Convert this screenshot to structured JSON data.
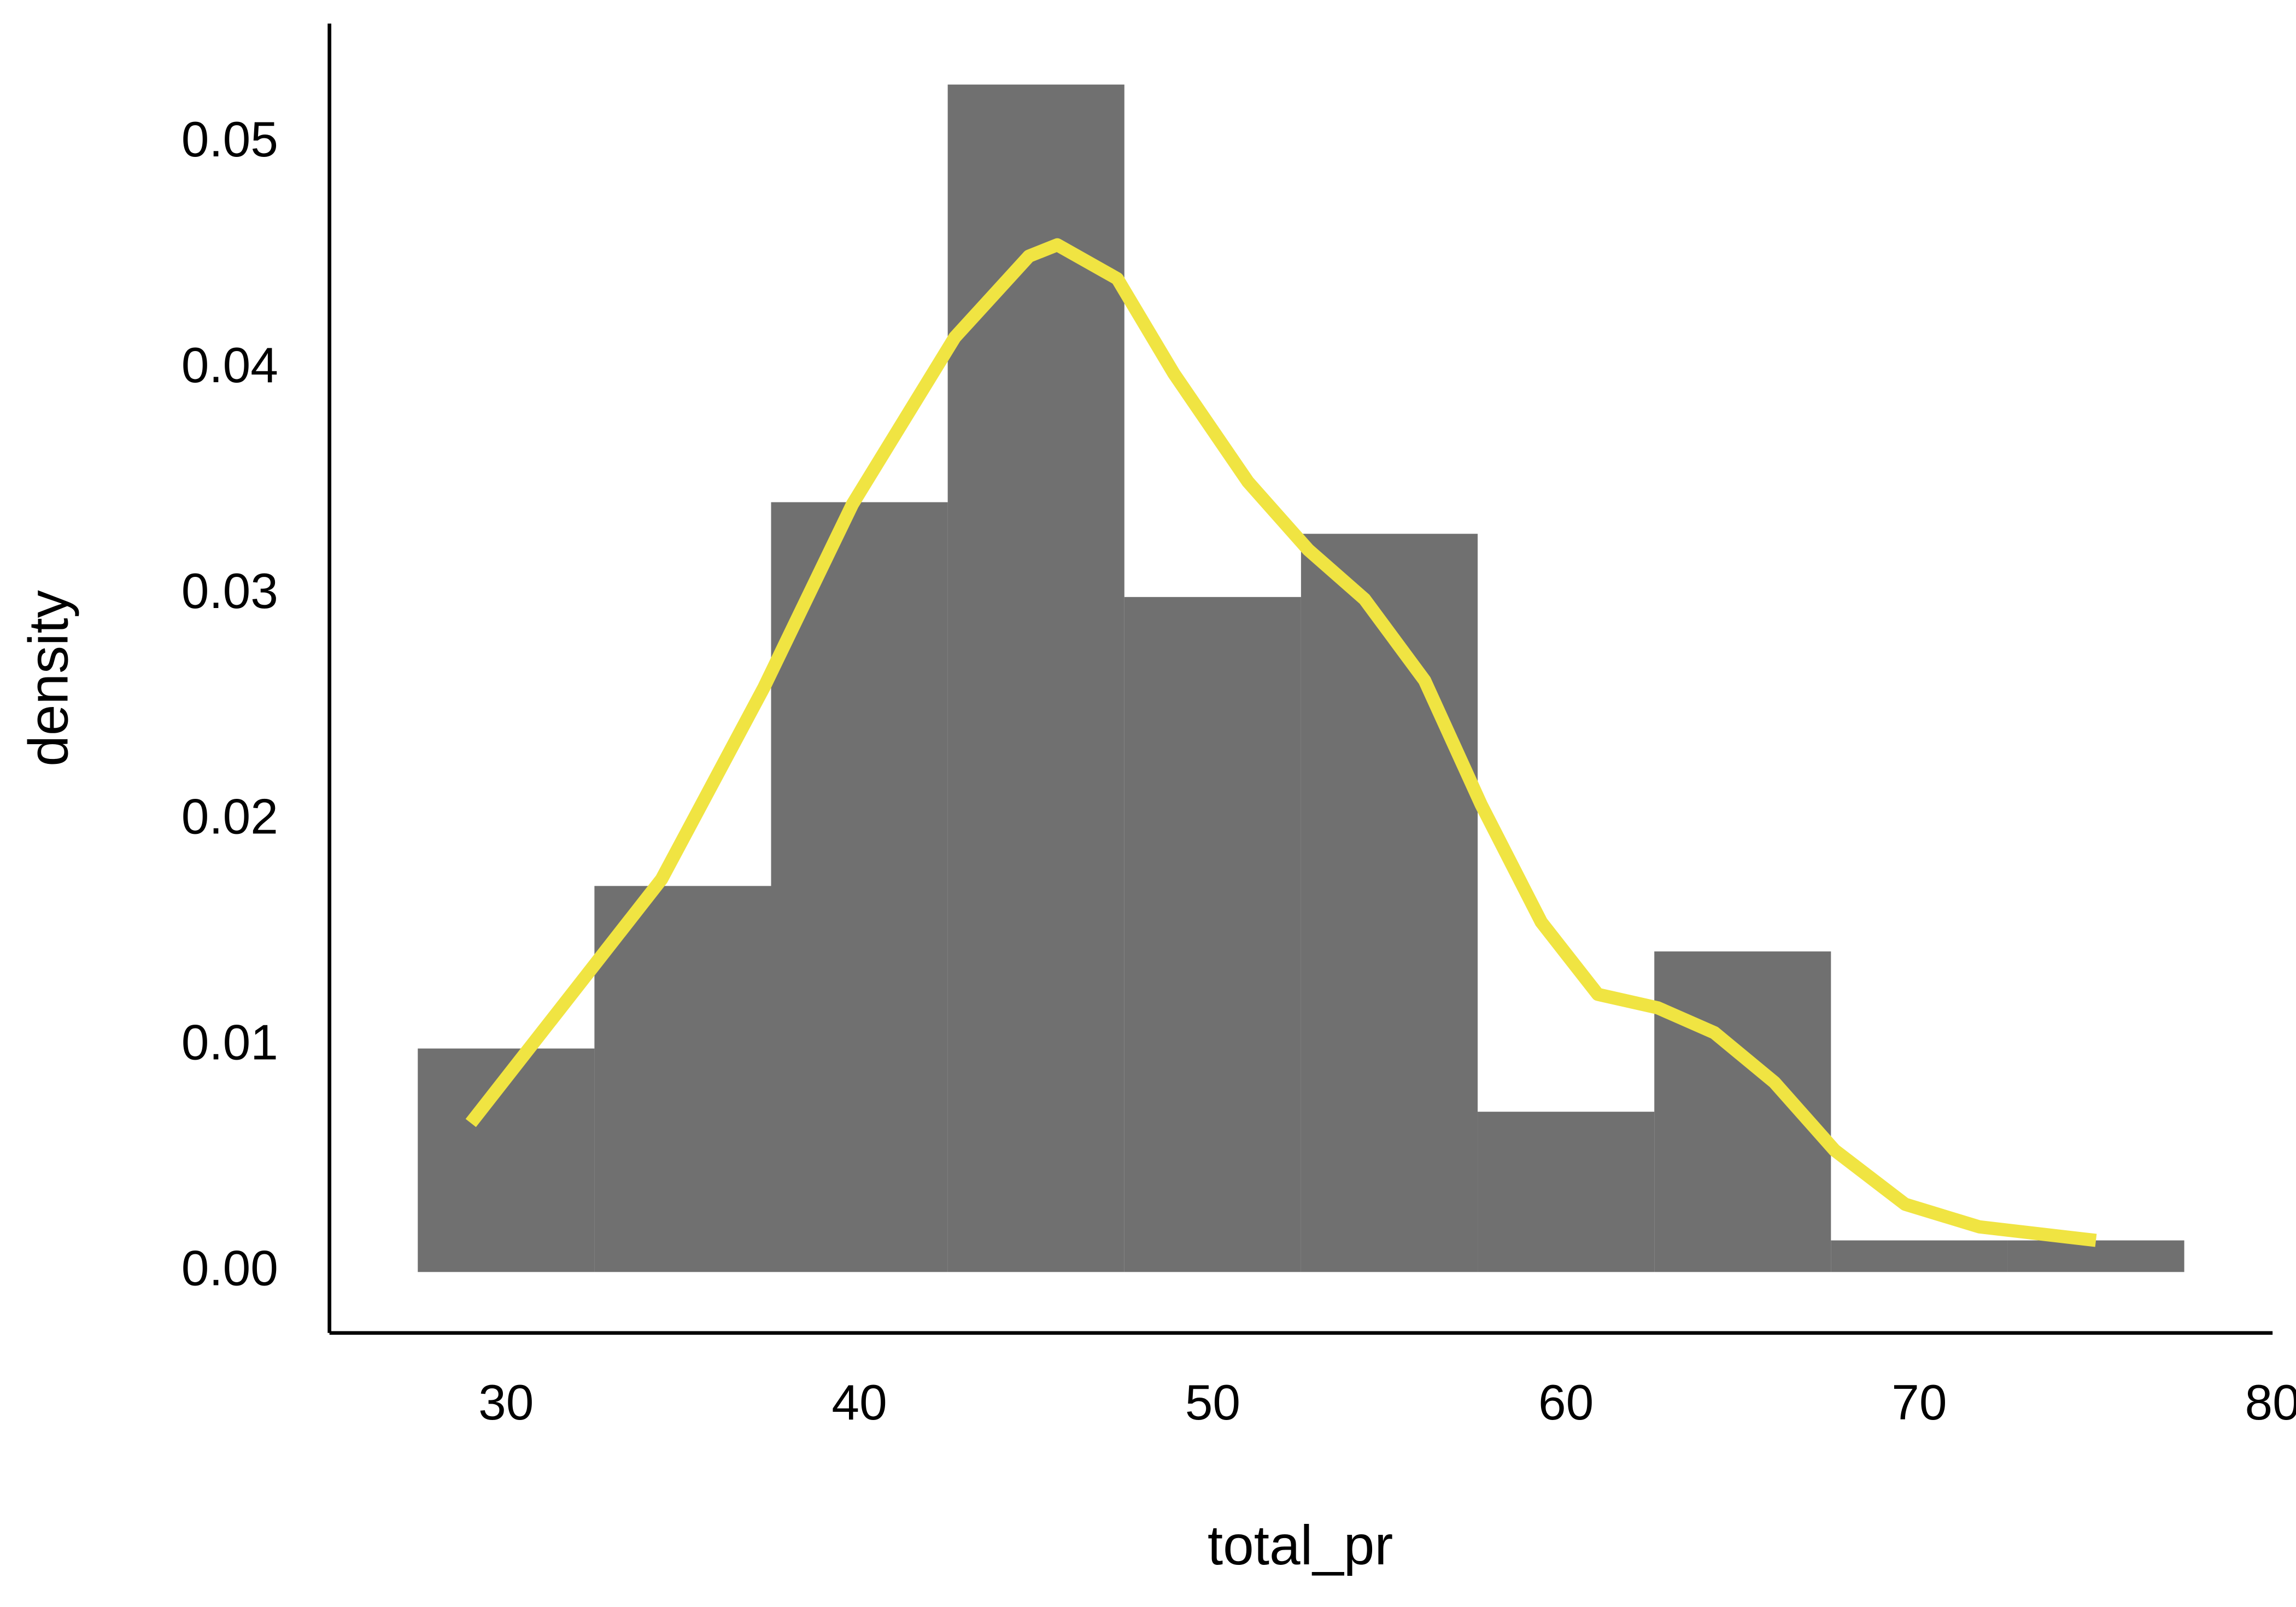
{
  "chart_data": {
    "type": "histogram",
    "x_label": "total_pr",
    "y_label": "density",
    "bins": [
      27.5,
      32.5,
      37.5,
      42.5,
      47.5,
      52.5,
      57.5,
      62.5,
      67.5,
      72.5,
      77.5
    ],
    "values": [
      0.0099,
      0.0171,
      0.0341,
      0.0526,
      0.0299,
      0.0327,
      0.0071,
      0.0142,
      0.0014,
      0.0014
    ],
    "color": "#707070",
    "density": {
      "type": "line",
      "color": "#f0e442",
      "x": [
        29.0,
        32.3,
        34.4,
        37.3,
        39.8,
        42.7,
        44.8,
        45.6,
        47.3,
        48.9,
        51.0,
        52.7,
        54.3,
        56.0,
        57.6,
        59.3,
        60.9,
        62.6,
        64.2,
        65.9,
        67.6,
        69.6,
        71.7,
        75.0
      ],
      "values": [
        0.0066,
        0.0132,
        0.0174,
        0.0259,
        0.034,
        0.0414,
        0.045,
        0.0455,
        0.044,
        0.0398,
        0.035,
        0.032,
        0.0298,
        0.0262,
        0.0207,
        0.0155,
        0.0123,
        0.0117,
        0.0106,
        0.0084,
        0.0054,
        0.003,
        0.002,
        0.0014
      ]
    },
    "xlim": [
      25,
      80
    ],
    "xticks": [
      30,
      40,
      50,
      60,
      70,
      80
    ],
    "ylim": [
      -0.0027,
      0.0553
    ],
    "yticks": [
      {
        "value": 0,
        "label": "0.00"
      },
      0.01,
      0.02,
      0.03,
      0.04,
      0.05
    ],
    "grid": false
  }
}
